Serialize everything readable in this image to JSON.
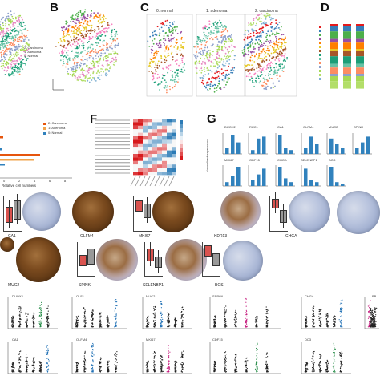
{
  "panels": {
    "b": "B",
    "c": "C",
    "d": "D",
    "f": "F",
    "g": "G"
  },
  "panel_c": {
    "titles": [
      "0: normal",
      "1: adenoma",
      "2: carcinoma"
    ]
  },
  "panel_a_legend": [
    "2: Carcinoma",
    "1: Adenoma",
    "0: Normal"
  ],
  "panel_e": {
    "legend": [
      "2: Carcinoma",
      "1: Adenoma",
      "0: Normal"
    ],
    "xlabel": "Relative cell numbers",
    "ticks": [
      "0",
      "2",
      "4",
      "6",
      "8"
    ]
  },
  "panel_g": {
    "ylabel": "Normalized expression",
    "genes_top": [
      "DUOX2",
      "RUC1",
      "CA1",
      "OLFM4",
      "MUC2",
      "SPINK"
    ],
    "genes_bottom": [
      "MKI67",
      "GDF15",
      "CHGA",
      "SELENBP1",
      "BGS"
    ]
  },
  "ihc_labels": {
    "row1": [
      "CA1",
      "OLFM4",
      "MKI67",
      "KDR13",
      "CHGA"
    ],
    "row2": [
      "MUC2",
      "SPINK",
      "SELENBP1",
      "BGS"
    ]
  },
  "violin_genes": {
    "row1": [
      "DUOX2",
      "OLF1",
      "MUC2",
      "SSPAN",
      "CHGA",
      "BB"
    ],
    "row2": [
      "CA1",
      "OLFM4",
      "MKI67",
      "CDF15",
      "DC3"
    ]
  },
  "colors": {
    "heat_red": "#d7191c",
    "heat_blue": "#2c7bb6",
    "bar_blue": "#3182bd",
    "bar_orange": "#e6550d",
    "stain_brown": "#8b5a2b",
    "stain_blue": "#aab8d6"
  }
}
